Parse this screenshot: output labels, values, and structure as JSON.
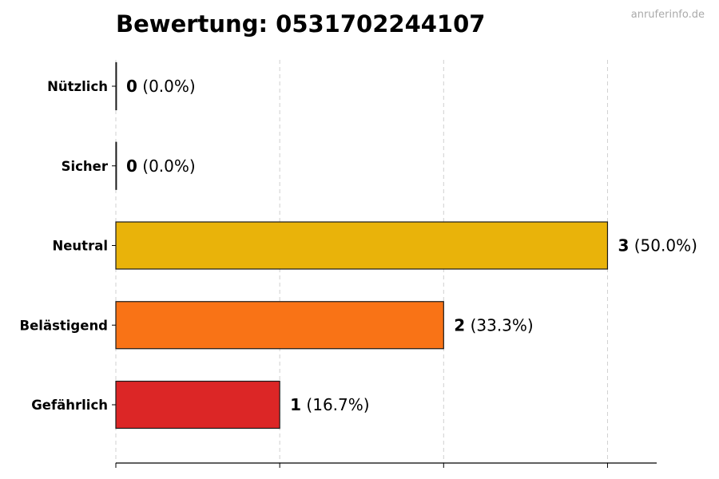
{
  "watermark": "anruferinfo.de",
  "chart_data": {
    "type": "bar",
    "orientation": "horizontal",
    "title": "Bewertung: 0531702244107",
    "xlabel": "",
    "ylabel": "",
    "xlim": [
      0,
      3.3
    ],
    "grid": "vertical-dashed",
    "categories": [
      "Nützlich",
      "Sicher",
      "Neutral",
      "Belästigend",
      "Gefährlich"
    ],
    "values": [
      0,
      0,
      3,
      2,
      1
    ],
    "percent_labels": [
      "(0.0%)",
      "(0.0%)",
      "(50.0%)",
      "(33.3%)",
      "(16.7%)"
    ],
    "colors": [
      "#2e9e44",
      "#3a78c2",
      "#e9b30a",
      "#f97316",
      "#dc2626"
    ]
  }
}
